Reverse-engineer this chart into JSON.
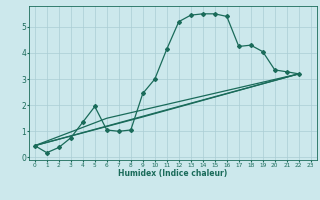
{
  "title": "",
  "xlabel": "Humidex (Indice chaleur)",
  "bg_color": "#cce8ec",
  "grid_color": "#aacdd4",
  "line_color": "#1a6b5a",
  "marker": "D",
  "markersize": 2.0,
  "linewidth": 0.9,
  "xlim": [
    -0.5,
    23.5
  ],
  "ylim": [
    -0.1,
    5.8
  ],
  "xticks": [
    0,
    1,
    2,
    3,
    4,
    5,
    6,
    7,
    8,
    9,
    10,
    11,
    12,
    13,
    14,
    15,
    16,
    17,
    18,
    19,
    20,
    21,
    22,
    23
  ],
  "yticks": [
    0,
    1,
    2,
    3,
    4,
    5
  ],
  "series": [
    [
      0,
      0.45
    ],
    [
      1,
      0.18
    ],
    [
      2,
      0.38
    ],
    [
      3,
      0.75
    ],
    [
      4,
      1.35
    ],
    [
      5,
      1.95
    ],
    [
      6,
      1.05
    ],
    [
      7,
      1.0
    ],
    [
      8,
      1.05
    ],
    [
      9,
      2.45
    ],
    [
      10,
      3.0
    ],
    [
      11,
      4.15
    ],
    [
      12,
      5.2
    ],
    [
      13,
      5.45
    ],
    [
      14,
      5.5
    ],
    [
      15,
      5.5
    ],
    [
      16,
      5.4
    ],
    [
      17,
      4.25
    ],
    [
      18,
      4.3
    ],
    [
      19,
      4.05
    ],
    [
      20,
      3.35
    ],
    [
      21,
      3.28
    ],
    [
      22,
      3.2
    ]
  ],
  "line2": [
    [
      0,
      0.45
    ],
    [
      22,
      3.2
    ]
  ],
  "line3": [
    [
      0,
      0.45
    ],
    [
      6,
      1.5
    ],
    [
      22,
      3.2
    ]
  ],
  "line4": [
    [
      0,
      0.45
    ],
    [
      9,
      1.55
    ],
    [
      22,
      3.2
    ]
  ]
}
